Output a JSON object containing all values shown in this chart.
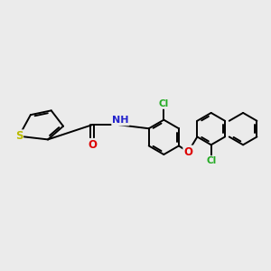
{
  "background_color": "#ebebeb",
  "bond_color": "#000000",
  "bond_width": 1.4,
  "atoms": {
    "S": {
      "color": "#bbbb00",
      "fontsize": 8.5
    },
    "O": {
      "color": "#dd0000",
      "fontsize": 8.5
    },
    "N": {
      "color": "#2222cc",
      "fontsize": 8.0
    },
    "Cl": {
      "color": "#22aa22",
      "fontsize": 7.5
    },
    "H": {
      "color": "#444444",
      "fontsize": 7.0
    }
  },
  "figsize": [
    3.0,
    3.0
  ],
  "dpi": 100
}
